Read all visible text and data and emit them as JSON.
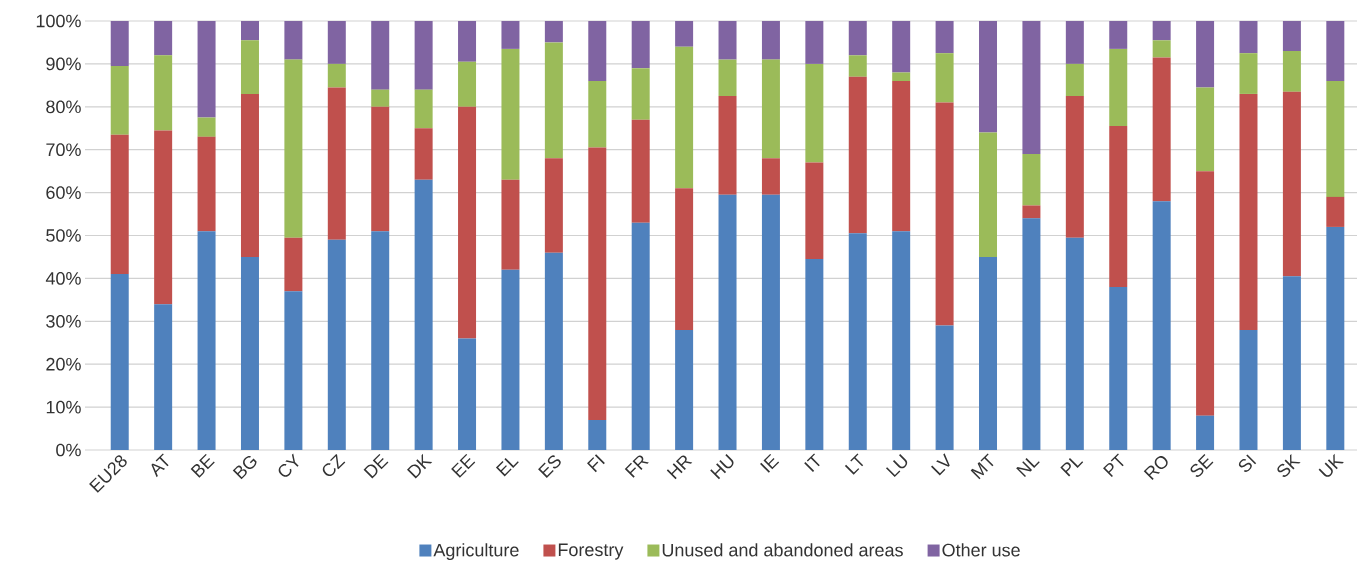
{
  "chart_data": {
    "type": "bar",
    "stacked": true,
    "categories": [
      "EU28",
      "AT",
      "BE",
      "BG",
      "CY",
      "CZ",
      "DE",
      "DK",
      "EE",
      "EL",
      "ES",
      "FI",
      "FR",
      "HR",
      "HU",
      "IE",
      "IT",
      "LT",
      "LU",
      "LV",
      "MT",
      "NL",
      "PL",
      "PT",
      "RO",
      "SE",
      "SI",
      "SK",
      "UK"
    ],
    "series": [
      {
        "name": "Agriculture",
        "color": "#4f81bd",
        "values": [
          41,
          34,
          51,
          45,
          37,
          49,
          51,
          63,
          26,
          42,
          46,
          7,
          53,
          28,
          59.5,
          59.5,
          44.5,
          50.5,
          51,
          29,
          45,
          54,
          49.5,
          38,
          58,
          8,
          28,
          40.5,
          52
        ]
      },
      {
        "name": "Forestry",
        "color": "#c0504d",
        "values": [
          32.5,
          40.5,
          22,
          38,
          12.5,
          35.5,
          29,
          12,
          54,
          21,
          22,
          63.5,
          24,
          33,
          23,
          8.5,
          22.5,
          36.5,
          35,
          52,
          0,
          3,
          33,
          37.5,
          33.5,
          57,
          55,
          43,
          7
        ]
      },
      {
        "name": "Unused and abandoned areas",
        "color": "#9bbb59",
        "values": [
          16,
          17.5,
          4.5,
          12.5,
          41.5,
          5.5,
          4,
          9,
          10.5,
          30.5,
          27,
          15.5,
          12,
          33,
          8.5,
          23,
          23,
          5,
          2,
          11.5,
          29,
          12,
          7.5,
          18,
          4,
          19.5,
          9.5,
          9.5,
          27
        ]
      },
      {
        "name": "Other use",
        "color": "#8064a2",
        "values": [
          10.5,
          8,
          22.5,
          4.5,
          9,
          10,
          16,
          16,
          9.5,
          6.5,
          5,
          14,
          11,
          6,
          9,
          9,
          10,
          8,
          12,
          7.5,
          26,
          31,
          10,
          6.5,
          4.5,
          15.5,
          7.5,
          7,
          14
        ]
      }
    ],
    "ylim": [
      0,
      100
    ],
    "yticks": [
      {
        "value": 0,
        "label": "0%"
      },
      {
        "value": 10,
        "label": "10%"
      },
      {
        "value": 20,
        "label": "20%"
      },
      {
        "value": 30,
        "label": "30%"
      },
      {
        "value": 40,
        "label": "40%"
      },
      {
        "value": 50,
        "label": "50%"
      },
      {
        "value": 60,
        "label": "60%"
      },
      {
        "value": 70,
        "label": "70%"
      },
      {
        "value": 80,
        "label": "80%"
      },
      {
        "value": 90,
        "label": "90%"
      },
      {
        "value": 100,
        "label": "100%"
      }
    ],
    "grid": "y",
    "legend": "bottom"
  }
}
